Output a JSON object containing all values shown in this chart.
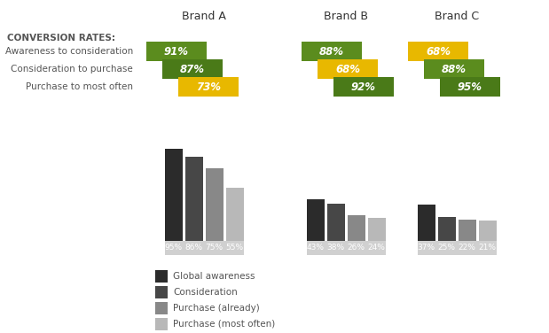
{
  "brands": [
    "Brand A",
    "Brand B",
    "Brand C"
  ],
  "bar_data": {
    "Brand A": [
      95,
      86,
      75,
      55
    ],
    "Brand B": [
      43,
      38,
      26,
      24
    ],
    "Brand C": [
      37,
      25,
      22,
      21
    ]
  },
  "conversion_data": {
    "Brand A": [
      {
        "value": "91%",
        "color": "#5b8c1e"
      },
      {
        "value": "87%",
        "color": "#4a7a18"
      },
      {
        "value": "73%",
        "color": "#e8b800"
      }
    ],
    "Brand B": [
      {
        "value": "88%",
        "color": "#5b8c1e"
      },
      {
        "value": "68%",
        "color": "#e8b800"
      },
      {
        "value": "92%",
        "color": "#4a7a18"
      }
    ],
    "Brand C": [
      {
        "value": "68%",
        "color": "#e8b800"
      },
      {
        "value": "88%",
        "color": "#5b8c1e"
      },
      {
        "value": "95%",
        "color": "#4a7a18"
      }
    ]
  },
  "bar_colors": [
    "#2b2b2b",
    "#474747",
    "#888888",
    "#b8b8b8"
  ],
  "conversion_labels": [
    "Awareness to consideration",
    "Consideration to purchase",
    "Purchase to most often"
  ],
  "legend_labels": [
    "Global awareness",
    "Consideration",
    "Purchase (already)",
    "Purchase (most often)"
  ],
  "background_color": "#ffffff"
}
